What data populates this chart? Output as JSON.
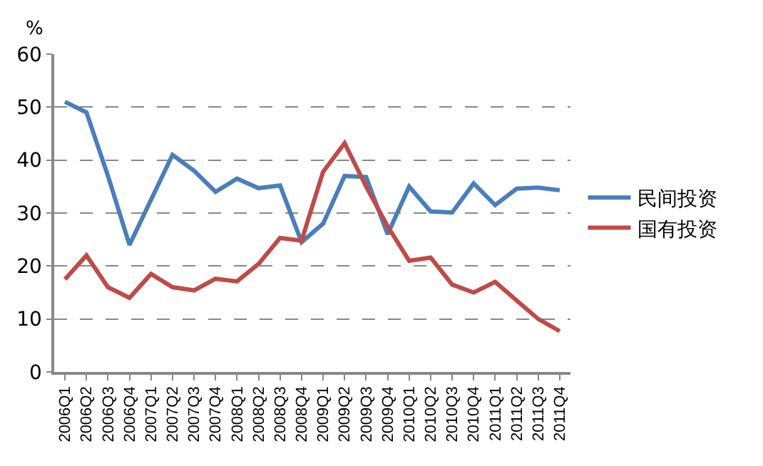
{
  "chart_data": {
    "type": "line",
    "ylabel": "%",
    "categories": [
      "2006Q1",
      "2006Q2",
      "2006Q3",
      "2006Q4",
      "2007Q1",
      "2007Q2",
      "2007Q3",
      "2007Q4",
      "2008Q1",
      "2008Q2",
      "2008Q3",
      "2008Q4",
      "2009Q1",
      "2009Q2",
      "2009Q3",
      "2009Q4",
      "2010Q1",
      "2010Q2",
      "2010Q3",
      "2010Q4",
      "2011Q1",
      "2011Q2",
      "2011Q3",
      "2011Q4"
    ],
    "series": [
      {
        "name": "民间投资",
        "color": "#4a7ebb",
        "values": [
          51,
          49,
          37,
          24,
          32.5,
          41,
          38,
          34,
          36.5,
          34.7,
          35.2,
          24.5,
          28,
          37,
          36.8,
          26,
          35,
          30.3,
          30.1,
          35.6,
          31.5,
          34.6,
          34.8,
          34.3
        ]
      },
      {
        "name": "国有投资",
        "color": "#be4b48",
        "values": [
          17.5,
          22,
          16,
          14,
          18.5,
          16,
          15.4,
          17.6,
          17.1,
          20.4,
          25.3,
          24.8,
          37.8,
          43.2,
          35,
          27.5,
          21,
          21.6,
          16.5,
          15,
          17,
          13.5,
          10,
          7.7
        ]
      }
    ],
    "ylim": [
      0,
      60
    ],
    "yticks": [
      0,
      10,
      20,
      30,
      40,
      50,
      60
    ],
    "grid": "y",
    "legend": "right",
    "marker": "none",
    "line_style": "solid"
  }
}
